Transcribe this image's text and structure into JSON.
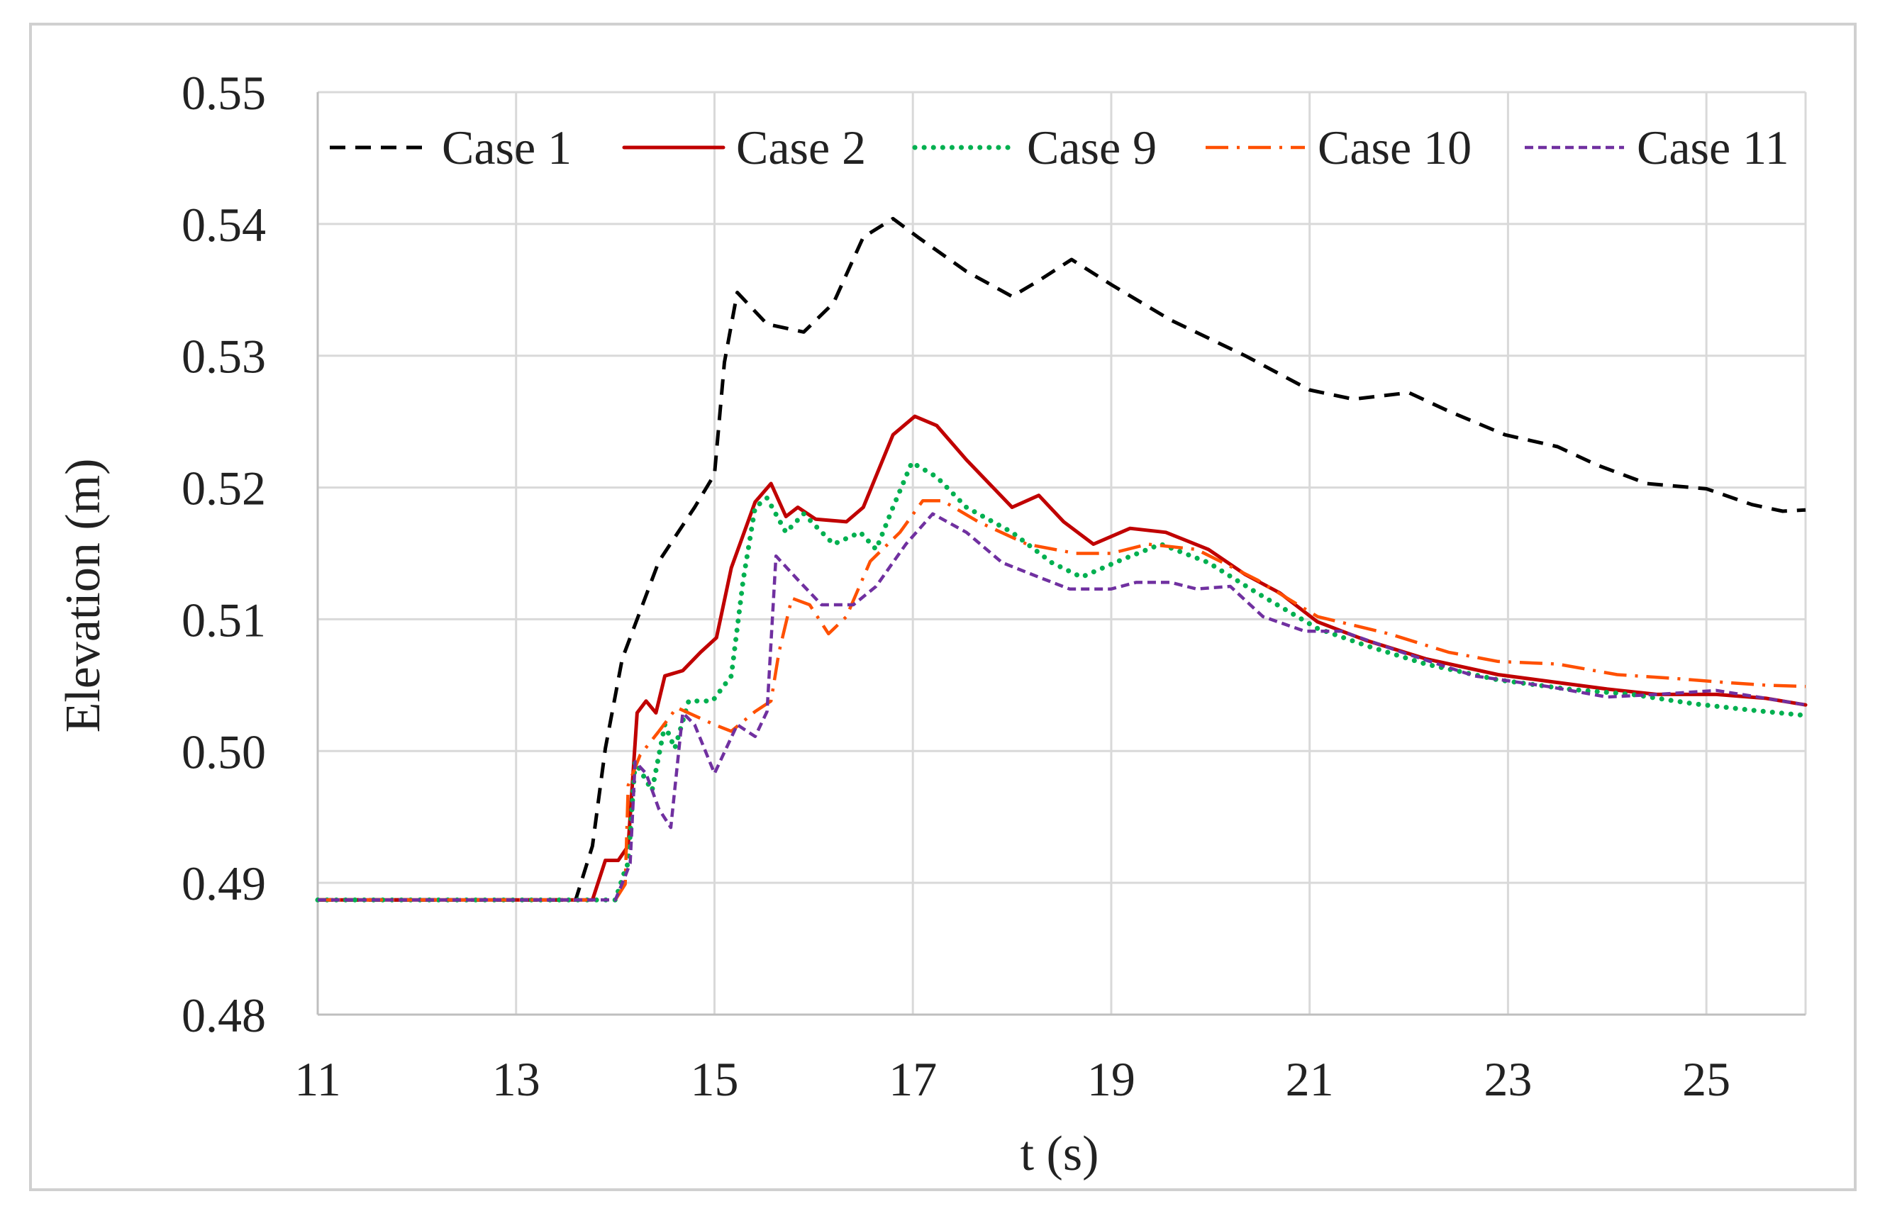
{
  "chart_data": {
    "type": "line",
    "title": "",
    "xlabel": "t (s)",
    "ylabel": "Elevation (m)",
    "xlim": [
      11,
      26
    ],
    "ylim": [
      0.48,
      0.55
    ],
    "xticks": [
      11,
      13,
      15,
      17,
      19,
      21,
      23,
      25
    ],
    "xtick_labels": [
      "11",
      "13",
      "15",
      "17",
      "19",
      "21",
      "23",
      "25"
    ],
    "yticks": [
      0.48,
      0.49,
      0.5,
      0.51,
      0.52,
      0.53,
      0.54,
      0.55
    ],
    "ytick_labels": [
      "0.48",
      "0.49",
      "0.50",
      "0.51",
      "0.52",
      "0.53",
      "0.54",
      "0.55"
    ],
    "grid": true,
    "legend_position": "top",
    "series": [
      {
        "name": "Case 1",
        "color": "#000000",
        "style": "dashed",
        "points": [
          [
            11,
            0.4887
          ],
          [
            13.6,
            0.4887
          ],
          [
            13.77,
            0.4928
          ],
          [
            13.9,
            0.5002
          ],
          [
            14.07,
            0.507
          ],
          [
            14.44,
            0.5144
          ],
          [
            14.8,
            0.5185
          ],
          [
            15.0,
            0.521
          ],
          [
            15.1,
            0.5295
          ],
          [
            15.23,
            0.5348
          ],
          [
            15.53,
            0.5324
          ],
          [
            15.9,
            0.5318
          ],
          [
            16.2,
            0.534
          ],
          [
            16.5,
            0.539
          ],
          [
            16.8,
            0.5404
          ],
          [
            17.05,
            0.539
          ],
          [
            17.54,
            0.5364
          ],
          [
            18.0,
            0.5345
          ],
          [
            18.27,
            0.5357
          ],
          [
            18.6,
            0.5373
          ],
          [
            19.0,
            0.5354
          ],
          [
            19.6,
            0.5327
          ],
          [
            20.35,
            0.53
          ],
          [
            21.0,
            0.5274
          ],
          [
            21.44,
            0.5267
          ],
          [
            22.0,
            0.5272
          ],
          [
            22.4,
            0.5258
          ],
          [
            22.97,
            0.524
          ],
          [
            23.5,
            0.5231
          ],
          [
            23.9,
            0.5217
          ],
          [
            24.4,
            0.5203
          ],
          [
            25.0,
            0.5199
          ],
          [
            25.46,
            0.5187
          ],
          [
            25.77,
            0.5182
          ],
          [
            26,
            0.5183
          ]
        ]
      },
      {
        "name": "Case 2",
        "color": "#C00000",
        "style": "solid",
        "points": [
          [
            11,
            0.4887
          ],
          [
            13.77,
            0.4887
          ],
          [
            13.9,
            0.4917
          ],
          [
            14.03,
            0.4917
          ],
          [
            14.13,
            0.4928
          ],
          [
            14.22,
            0.5029
          ],
          [
            14.31,
            0.5038
          ],
          [
            14.41,
            0.5029
          ],
          [
            14.5,
            0.5057
          ],
          [
            14.68,
            0.5061
          ],
          [
            14.86,
            0.5075
          ],
          [
            15.02,
            0.5086
          ],
          [
            15.17,
            0.5139
          ],
          [
            15.41,
            0.5189
          ],
          [
            15.57,
            0.5203
          ],
          [
            15.72,
            0.5178
          ],
          [
            15.84,
            0.5185
          ],
          [
            16.02,
            0.5176
          ],
          [
            16.33,
            0.5174
          ],
          [
            16.5,
            0.5185
          ],
          [
            16.8,
            0.524
          ],
          [
            17.02,
            0.5254
          ],
          [
            17.24,
            0.5247
          ],
          [
            17.54,
            0.5221
          ],
          [
            18.0,
            0.5185
          ],
          [
            18.27,
            0.5194
          ],
          [
            18.52,
            0.5174
          ],
          [
            18.82,
            0.5157
          ],
          [
            19.19,
            0.5169
          ],
          [
            19.55,
            0.5166
          ],
          [
            19.98,
            0.5153
          ],
          [
            20.35,
            0.5134
          ],
          [
            20.7,
            0.512
          ],
          [
            21.08,
            0.5098
          ],
          [
            21.57,
            0.5084
          ],
          [
            22.17,
            0.507
          ],
          [
            22.9,
            0.5058
          ],
          [
            23.5,
            0.5052
          ],
          [
            24.0,
            0.5047
          ],
          [
            24.5,
            0.5043
          ],
          [
            25.1,
            0.5043
          ],
          [
            25.6,
            0.504
          ],
          [
            26,
            0.5035
          ]
        ]
      },
      {
        "name": "Case 9",
        "color": "#00B050",
        "style": "dotted",
        "points": [
          [
            11,
            0.4887
          ],
          [
            14.0,
            0.4887
          ],
          [
            14.1,
            0.491
          ],
          [
            14.13,
            0.4915
          ],
          [
            14.2,
            0.4992
          ],
          [
            14.37,
            0.497
          ],
          [
            14.5,
            0.502
          ],
          [
            14.6,
            0.5002
          ],
          [
            14.74,
            0.5038
          ],
          [
            14.98,
            0.5038
          ],
          [
            15.17,
            0.5057
          ],
          [
            15.29,
            0.513
          ],
          [
            15.41,
            0.5185
          ],
          [
            15.53,
            0.5192
          ],
          [
            15.72,
            0.5166
          ],
          [
            15.9,
            0.518
          ],
          [
            16.2,
            0.5157
          ],
          [
            16.47,
            0.5166
          ],
          [
            16.63,
            0.5153
          ],
          [
            16.8,
            0.5185
          ],
          [
            16.99,
            0.5219
          ],
          [
            17.24,
            0.5208
          ],
          [
            17.54,
            0.5185
          ],
          [
            18.0,
            0.5166
          ],
          [
            18.4,
            0.5143
          ],
          [
            18.7,
            0.5132
          ],
          [
            19.1,
            0.5145
          ],
          [
            19.5,
            0.5157
          ],
          [
            19.98,
            0.5143
          ],
          [
            20.47,
            0.512
          ],
          [
            21.08,
            0.5093
          ],
          [
            21.57,
            0.508
          ],
          [
            22.17,
            0.5066
          ],
          [
            22.9,
            0.5054
          ],
          [
            23.6,
            0.5047
          ],
          [
            24.25,
            0.5043
          ],
          [
            24.86,
            0.5036
          ],
          [
            25.46,
            0.5031
          ],
          [
            26,
            0.5027
          ]
        ]
      },
      {
        "name": "Case 10",
        "color": "#FF5000",
        "style": "dash-dot",
        "points": [
          [
            11,
            0.4887
          ],
          [
            14.0,
            0.4887
          ],
          [
            14.1,
            0.4899
          ],
          [
            14.13,
            0.4974
          ],
          [
            14.25,
            0.4997
          ],
          [
            14.44,
            0.5015
          ],
          [
            14.62,
            0.5033
          ],
          [
            15.0,
            0.502
          ],
          [
            15.17,
            0.5015
          ],
          [
            15.41,
            0.503
          ],
          [
            15.57,
            0.5038
          ],
          [
            15.65,
            0.5075
          ],
          [
            15.78,
            0.5116
          ],
          [
            15.96,
            0.5111
          ],
          [
            16.15,
            0.5089
          ],
          [
            16.33,
            0.5102
          ],
          [
            16.57,
            0.5144
          ],
          [
            16.87,
            0.5166
          ],
          [
            17.1,
            0.519
          ],
          [
            17.3,
            0.519
          ],
          [
            17.66,
            0.5174
          ],
          [
            18.15,
            0.5157
          ],
          [
            18.64,
            0.515
          ],
          [
            19.0,
            0.515
          ],
          [
            19.37,
            0.5157
          ],
          [
            19.86,
            0.5153
          ],
          [
            20.47,
            0.513
          ],
          [
            21.08,
            0.5102
          ],
          [
            21.8,
            0.5089
          ],
          [
            22.4,
            0.5075
          ],
          [
            22.9,
            0.5068
          ],
          [
            23.5,
            0.5066
          ],
          [
            24.1,
            0.5058
          ],
          [
            24.7,
            0.5055
          ],
          [
            25.2,
            0.5052
          ],
          [
            25.6,
            0.505
          ],
          [
            26,
            0.5049
          ]
        ]
      },
      {
        "name": "Case 11",
        "color": "#7030A0",
        "style": "short-dashed",
        "points": [
          [
            11,
            0.4887
          ],
          [
            14.0,
            0.4887
          ],
          [
            14.1,
            0.4905
          ],
          [
            14.15,
            0.4915
          ],
          [
            14.2,
            0.4992
          ],
          [
            14.31,
            0.4983
          ],
          [
            14.44,
            0.4956
          ],
          [
            14.56,
            0.4942
          ],
          [
            14.68,
            0.5029
          ],
          [
            14.8,
            0.502
          ],
          [
            15.0,
            0.4983
          ],
          [
            15.23,
            0.502
          ],
          [
            15.41,
            0.5011
          ],
          [
            15.53,
            0.503
          ],
          [
            15.62,
            0.5148
          ],
          [
            15.84,
            0.513
          ],
          [
            16.08,
            0.5111
          ],
          [
            16.4,
            0.5111
          ],
          [
            16.63,
            0.5125
          ],
          [
            16.93,
            0.5157
          ],
          [
            17.2,
            0.518
          ],
          [
            17.54,
            0.5166
          ],
          [
            17.9,
            0.5143
          ],
          [
            18.27,
            0.5132
          ],
          [
            18.58,
            0.5123
          ],
          [
            19.0,
            0.5123
          ],
          [
            19.25,
            0.5128
          ],
          [
            19.6,
            0.5128
          ],
          [
            19.86,
            0.5123
          ],
          [
            20.2,
            0.5125
          ],
          [
            20.53,
            0.5102
          ],
          [
            20.95,
            0.5091
          ],
          [
            21.32,
            0.5091
          ],
          [
            21.93,
            0.5075
          ],
          [
            22.66,
            0.5057
          ],
          [
            23.4,
            0.5049
          ],
          [
            24.0,
            0.5041
          ],
          [
            24.5,
            0.5043
          ],
          [
            25.1,
            0.5046
          ],
          [
            25.6,
            0.504
          ],
          [
            26,
            0.5035
          ]
        ]
      }
    ]
  }
}
